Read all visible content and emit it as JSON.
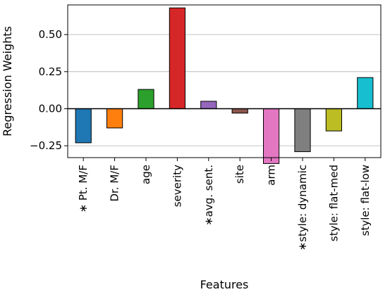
{
  "chart_data": {
    "type": "bar",
    "title": "",
    "xlabel": "Features",
    "ylabel": "Regression Weights",
    "ylim": [
      -0.33,
      0.7
    ],
    "yticks": [
      -0.25,
      0.0,
      0.25,
      0.5
    ],
    "ytick_labels": [
      "−0.25",
      "0.00",
      "0.25",
      "0.50"
    ],
    "grid": "horizontal",
    "zero_line": true,
    "legend": "none",
    "categories": [
      "∗ Pt. M/F",
      "Dr. M/F",
      "age",
      "severity",
      "∗avg. sent.",
      "site",
      "arm",
      "∗style: dynamic",
      "style: flat-med",
      "style: flat-low"
    ],
    "values": [
      -0.23,
      -0.13,
      0.13,
      0.68,
      0.05,
      -0.03,
      -0.37,
      -0.29,
      -0.15,
      0.21
    ],
    "colors": [
      "#1f77b4",
      "#ff7f0e",
      "#2ca02c",
      "#d62728",
      "#9467bd",
      "#8c564b",
      "#e377c2",
      "#7f7f7f",
      "#bcbd22",
      "#17becf"
    ]
  }
}
